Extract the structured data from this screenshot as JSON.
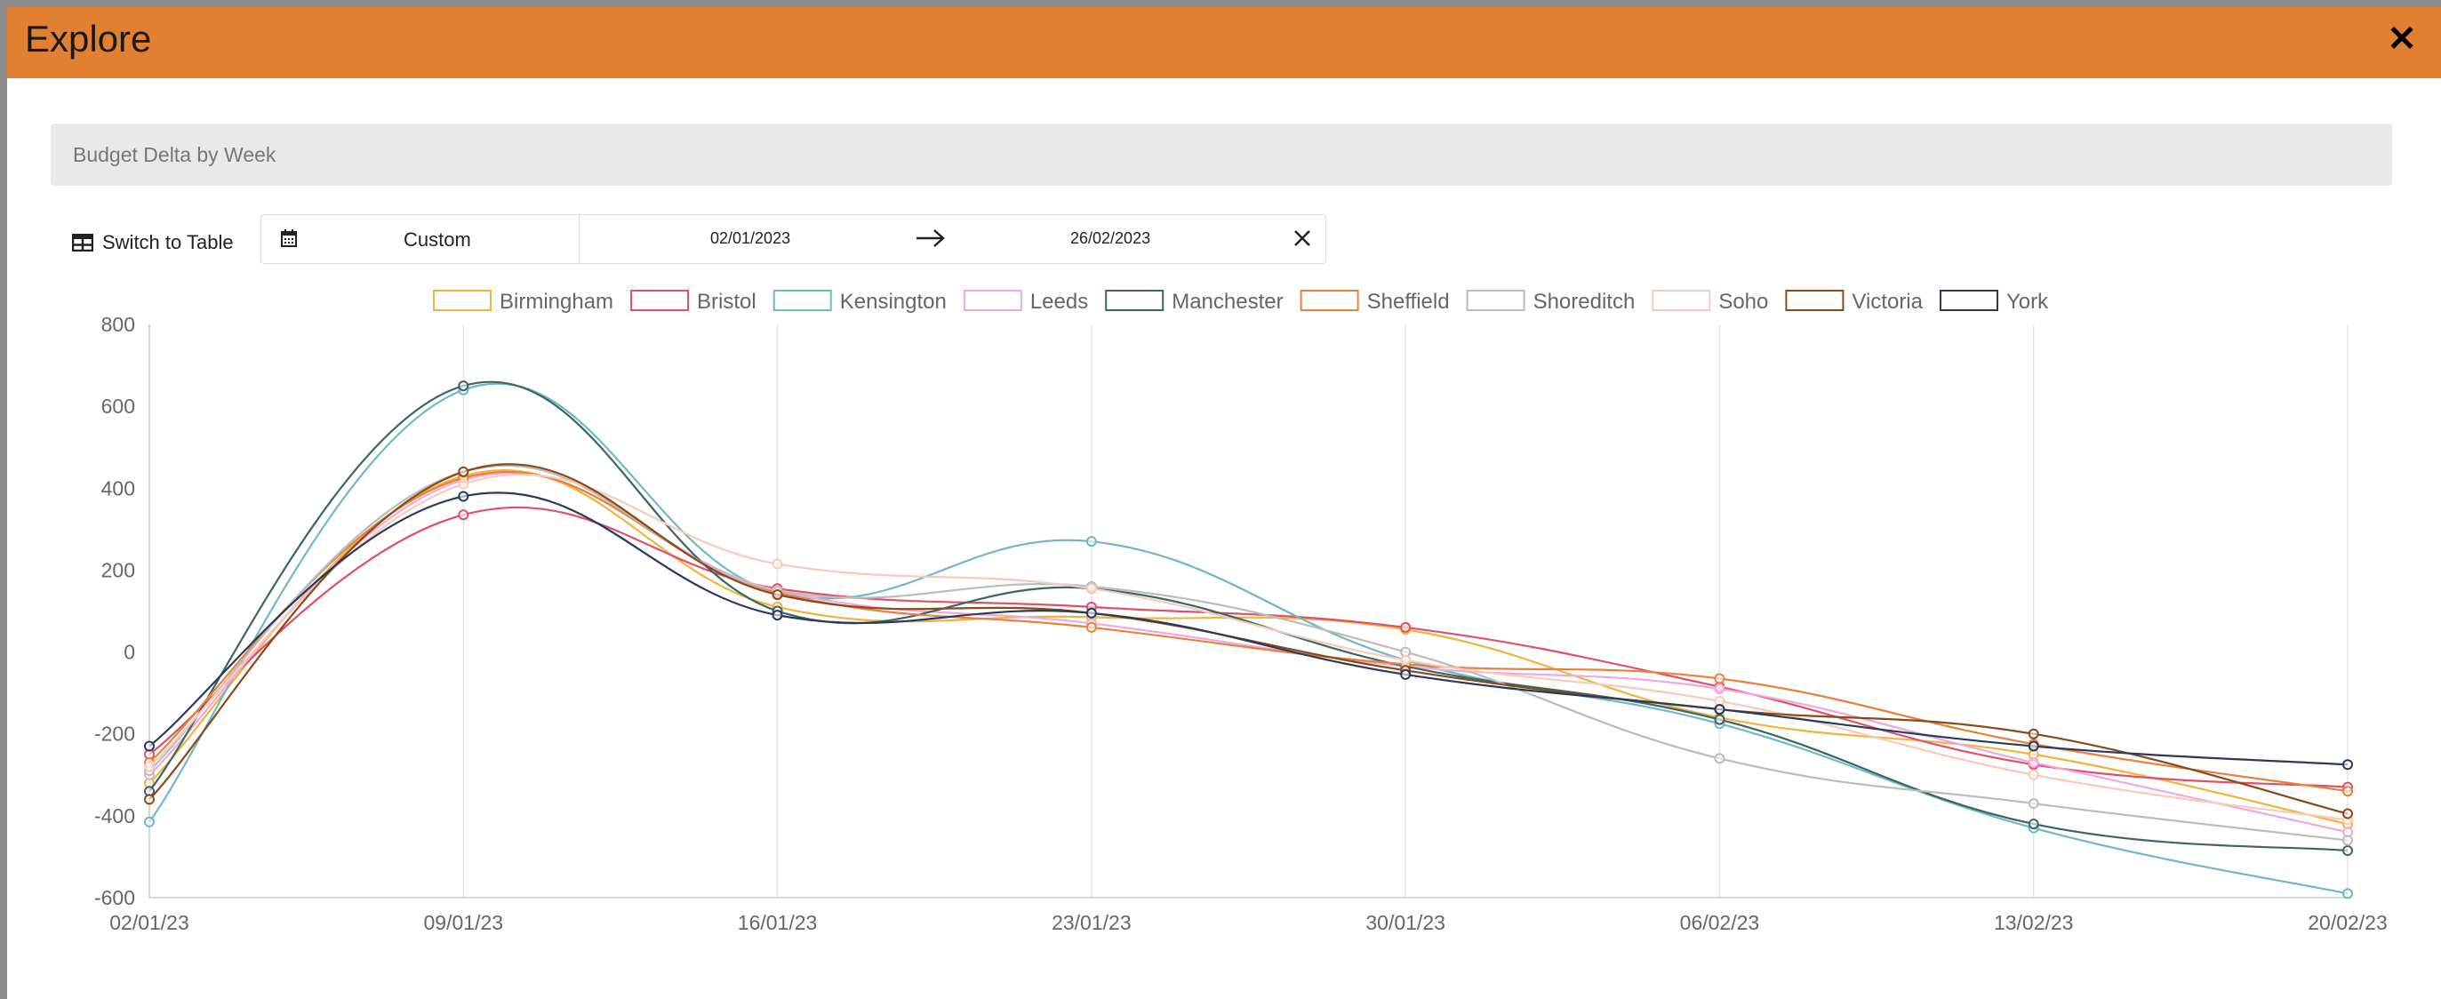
{
  "modal": {
    "title": "Explore",
    "close_label": "✕"
  },
  "toolbar": {
    "switch_label": "Switch to Table",
    "range_label": "Custom",
    "start_date": "02/01/2023",
    "end_date": "26/02/2023"
  },
  "colors": {
    "header": "#e08030"
  },
  "chart_data": {
    "type": "line",
    "title": "Budget Delta by Week",
    "xlabel": "",
    "ylabel": "",
    "categories": [
      "02/01/23",
      "09/01/23",
      "16/01/23",
      "23/01/23",
      "30/01/23",
      "06/02/23",
      "13/02/23",
      "20/02/23"
    ],
    "ylim": [
      -600,
      800
    ],
    "yticks": [
      800,
      600,
      400,
      200,
      0,
      -200,
      -400,
      -600
    ],
    "grid": "vertical",
    "legend": "top-center",
    "series": [
      {
        "name": "Birmingham",
        "color": "#f0b43c",
        "values": [
          -320,
          430,
          110,
          85,
          55,
          -160,
          -250,
          -420
        ]
      },
      {
        "name": "Bristol",
        "color": "#e0506a",
        "values": [
          -250,
          335,
          155,
          110,
          60,
          -85,
          -275,
          -330
        ]
      },
      {
        "name": "Kensington",
        "color": "#6fb8c8",
        "values": [
          -415,
          640,
          145,
          270,
          -20,
          -175,
          -430,
          -590
        ]
      },
      {
        "name": "Leeds",
        "color": "#f0a8e0",
        "values": [
          -300,
          420,
          150,
          70,
          -35,
          -90,
          -270,
          -440
        ]
      },
      {
        "name": "Manchester",
        "color": "#3a6664",
        "values": [
          -340,
          650,
          100,
          155,
          -35,
          -165,
          -420,
          -485
        ]
      },
      {
        "name": "Sheffield",
        "color": "#e8813c",
        "values": [
          -270,
          425,
          145,
          60,
          -30,
          -65,
          -225,
          -340
        ]
      },
      {
        "name": "Shoreditch",
        "color": "#bcbcbc",
        "values": [
          -290,
          440,
          150,
          160,
          0,
          -260,
          -370,
          -460
        ]
      },
      {
        "name": "Soho",
        "color": "#f8cbb8",
        "values": [
          -280,
          410,
          215,
          155,
          -20,
          -120,
          -300,
          -410
        ]
      },
      {
        "name": "Victoria",
        "color": "#8a4a18",
        "values": [
          -360,
          440,
          140,
          95,
          -45,
          -140,
          -200,
          -395
        ]
      },
      {
        "name": "York",
        "color": "#2a3a5c",
        "values": [
          -230,
          380,
          90,
          95,
          -55,
          -140,
          -230,
          -275
        ]
      }
    ]
  }
}
